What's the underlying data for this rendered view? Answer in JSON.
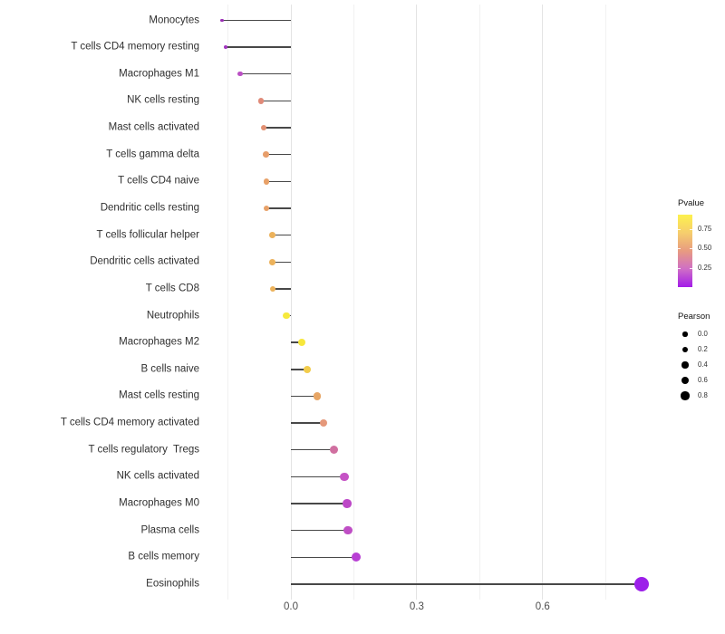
{
  "chart_data": {
    "type": "scatter",
    "variant": "lollipop",
    "title": "",
    "xlabel": "",
    "ylabel": "",
    "x_axis": {
      "ticks": [
        {
          "label": "0.0",
          "value": 0.0
        },
        {
          "label": "0.3",
          "value": 0.3
        },
        {
          "label": "0.6",
          "value": 0.6
        }
      ],
      "minor_grid_values": [
        -0.15,
        0.15,
        0.45,
        0.75
      ],
      "xlim": [
        -0.22,
        0.9
      ]
    },
    "grid": "vertical-only",
    "legend_position": "right",
    "points": [
      {
        "label": "Monocytes",
        "pearson": -0.164,
        "color": "#9a2eb5",
        "radius": 1.7
      },
      {
        "label": "T cells CD4 memory resting",
        "pearson": -0.156,
        "color": "#a134bf",
        "radius": 2.0
      },
      {
        "label": "Macrophages M1",
        "pearson": -0.121,
        "color": "#ba50c4",
        "radius": 2.7
      },
      {
        "label": "NK cells resting",
        "pearson": -0.071,
        "color": "#e08a78",
        "radius": 3.2
      },
      {
        "label": "Mast cells activated",
        "pearson": -0.065,
        "color": "#e29072",
        "radius": 3.2
      },
      {
        "label": "T cells gamma delta",
        "pearson": -0.06,
        "color": "#e79e6b",
        "radius": 3.3
      },
      {
        "label": "T cells CD4 naive",
        "pearson": -0.058,
        "color": "#e8a168",
        "radius": 3.3
      },
      {
        "label": "Dendritic cells resting",
        "pearson": -0.058,
        "color": "#e8a168",
        "radius": 3.3
      },
      {
        "label": "T cells follicular helper",
        "pearson": -0.045,
        "color": "#ecb25b",
        "radius": 3.4
      },
      {
        "label": "Dendritic cells activated",
        "pearson": -0.045,
        "color": "#ecb25b",
        "radius": 3.4
      },
      {
        "label": "T cells CD8",
        "pearson": -0.043,
        "color": "#ecb25b",
        "radius": 3.4
      },
      {
        "label": "Neutrophils",
        "pearson": -0.011,
        "color": "#f6e93d",
        "radius": 3.8
      },
      {
        "label": "Macrophages M2",
        "pearson": 0.026,
        "color": "#f7e73c",
        "radius": 4.0
      },
      {
        "label": "B cells naive",
        "pearson": 0.039,
        "color": "#f2cc4c",
        "radius": 4.2
      },
      {
        "label": "Mast cells resting",
        "pearson": 0.063,
        "color": "#e7a565",
        "radius": 4.2
      },
      {
        "label": "T cells CD4 memory activated",
        "pearson": 0.078,
        "color": "#e5987a",
        "radius": 4.2
      },
      {
        "label": "T cells regulatory  Tregs",
        "pearson": 0.102,
        "color": "#d06fa0",
        "radius": 4.5
      },
      {
        "label": "NK cells activated",
        "pearson": 0.127,
        "color": "#c553c5",
        "radius": 4.8
      },
      {
        "label": "Macrophages M0",
        "pearson": 0.134,
        "color": "#bd47c7",
        "radius": 4.8
      },
      {
        "label": "Plasma cells",
        "pearson": 0.136,
        "color": "#bf4ec5",
        "radius": 4.8
      },
      {
        "label": "B cells memory",
        "pearson": 0.156,
        "color": "#b83fd4",
        "radius": 5.1
      },
      {
        "label": "Eosinophils",
        "pearson": 0.836,
        "color": "#9c1fe9",
        "radius": 8.0
      }
    ],
    "legend_pvalue": {
      "title": "Pvalue",
      "tick_labels": [
        "0.75",
        "0.50",
        "0.25"
      ],
      "gradient_bottom_to_top": [
        "#a21ce8",
        "#cf6ec6",
        "#e89b80",
        "#f6ce6d",
        "#fdf14d"
      ]
    },
    "legend_pearson": {
      "title": "Pearson",
      "items": [
        {
          "label": "0.0",
          "radius": 2.6
        },
        {
          "label": "0.2",
          "radius": 3.1
        },
        {
          "label": "0.4",
          "radius": 3.6
        },
        {
          "label": "0.6",
          "radius": 4.1
        },
        {
          "label": "0.8",
          "radius": 4.6
        }
      ]
    },
    "style_colors": {
      "stem": "#484848",
      "grid_major": "#e4e4e4",
      "grid_minor": "#f1f1f1",
      "axis_text": "#4d4d4d",
      "label_text": "#303030"
    }
  }
}
